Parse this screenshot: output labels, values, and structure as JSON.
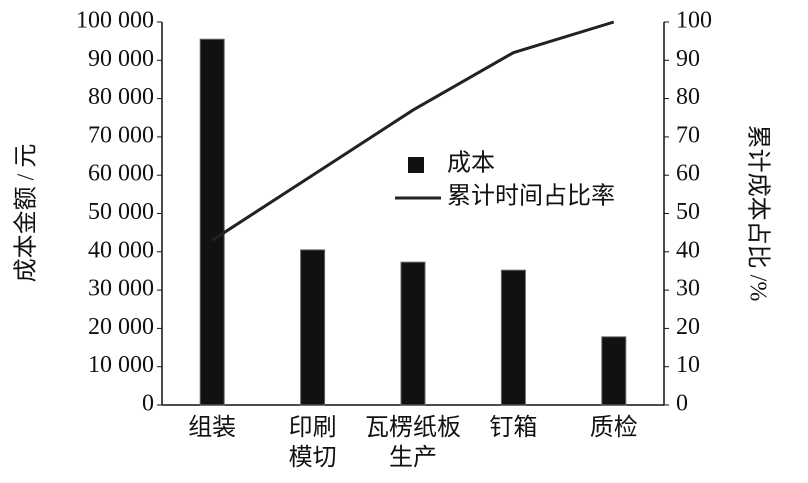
{
  "chart_data": {
    "type": "bar",
    "categories": [
      "组装",
      "印刷\n模切",
      "瓦楞纸板\n生产",
      "钉箱",
      "质检"
    ],
    "series": [
      {
        "name": "成本",
        "type": "bar",
        "color": "#111111",
        "values": [
          95500,
          40500,
          37300,
          35200,
          17800
        ]
      },
      {
        "name": "累计时间占比率",
        "type": "line",
        "axis": "y2",
        "color": "#222222",
        "values": [
          43,
          60,
          77,
          92,
          100
        ]
      }
    ],
    "ylabel": "成本金额 / 元",
    "y2label": "累计成本占比 /%",
    "ylim": [
      0,
      100000
    ],
    "yticks": [
      0,
      {
        "value": 10000,
        "label": "10 000"
      },
      {
        "value": 20000,
        "label": "20 000"
      },
      {
        "value": 30000,
        "label": "30 000"
      },
      {
        "value": 40000,
        "label": "40 000"
      },
      {
        "value": 50000,
        "label": "50 000"
      },
      {
        "value": 60000,
        "label": "60 000"
      },
      {
        "value": 70000,
        "label": "70 000"
      },
      {
        "value": 80000,
        "label": "80 000"
      },
      {
        "value": 90000,
        "label": "90 000"
      },
      {
        "value": 100000,
        "label": "100 000"
      }
    ],
    "y2lim": [
      0,
      100
    ],
    "y2ticks": [
      0,
      10,
      20,
      30,
      40,
      50,
      60,
      70,
      80,
      90,
      100
    ],
    "legend": "center"
  }
}
